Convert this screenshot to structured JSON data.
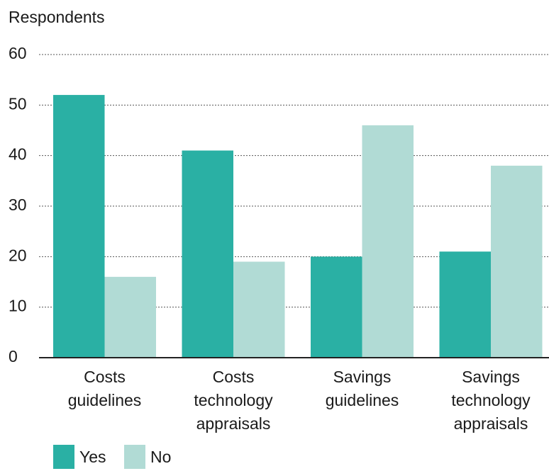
{
  "chart_data": {
    "type": "bar",
    "y_axis_label": "Respondents",
    "categories": [
      [
        "Costs",
        "guidelines"
      ],
      [
        "Costs",
        "technology",
        "appraisals"
      ],
      [
        "Savings",
        "guidelines"
      ],
      [
        "Savings",
        "technology",
        "appraisals"
      ]
    ],
    "series": [
      {
        "name": "Yes",
        "color": "#2ab0a4",
        "values": [
          52,
          41,
          20,
          21
        ]
      },
      {
        "name": "No",
        "color": "#b1dbd5",
        "values": [
          16,
          19,
          46,
          38
        ]
      }
    ],
    "ylim": [
      0,
      60
    ],
    "yticks": [
      0,
      10,
      20,
      30,
      40,
      50,
      60
    ],
    "grid": true,
    "legend": "bottom"
  }
}
